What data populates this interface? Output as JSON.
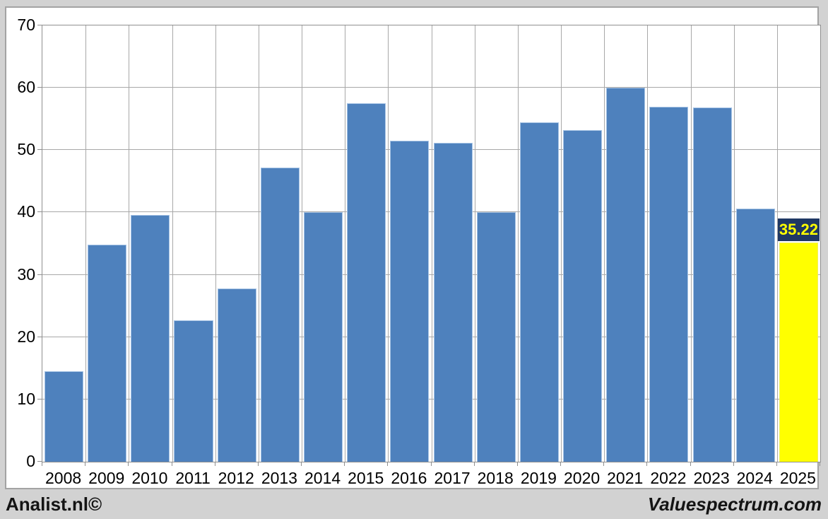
{
  "chart_data": {
    "type": "bar",
    "title": "",
    "xlabel": "",
    "ylabel": "",
    "categories": [
      "2008",
      "2009",
      "2010",
      "2011",
      "2012",
      "2013",
      "2014",
      "2015",
      "2016",
      "2017",
      "2018",
      "2019",
      "2020",
      "2021",
      "2022",
      "2023",
      "2024",
      "2025"
    ],
    "values": [
      14.5,
      34.8,
      39.6,
      22.7,
      27.8,
      47.2,
      40.1,
      57.5,
      51.5,
      51.2,
      40.1,
      54.5,
      53.2,
      60.0,
      57.0,
      56.8,
      40.6,
      35.22
    ],
    "ylim": [
      0,
      70
    ],
    "yticks": [
      0,
      10,
      20,
      30,
      40,
      50,
      60,
      70
    ],
    "grid": true,
    "legend": "none",
    "bar_color": "#4e81bd",
    "highlight": {
      "index": 17,
      "bar_color": "#ffff00",
      "label": "35.22",
      "label_box_color": "#1f3864",
      "label_text_color": "#ffff00"
    }
  },
  "footer": {
    "left": "Analist.nl©",
    "right": "Valuespectrum.com"
  }
}
